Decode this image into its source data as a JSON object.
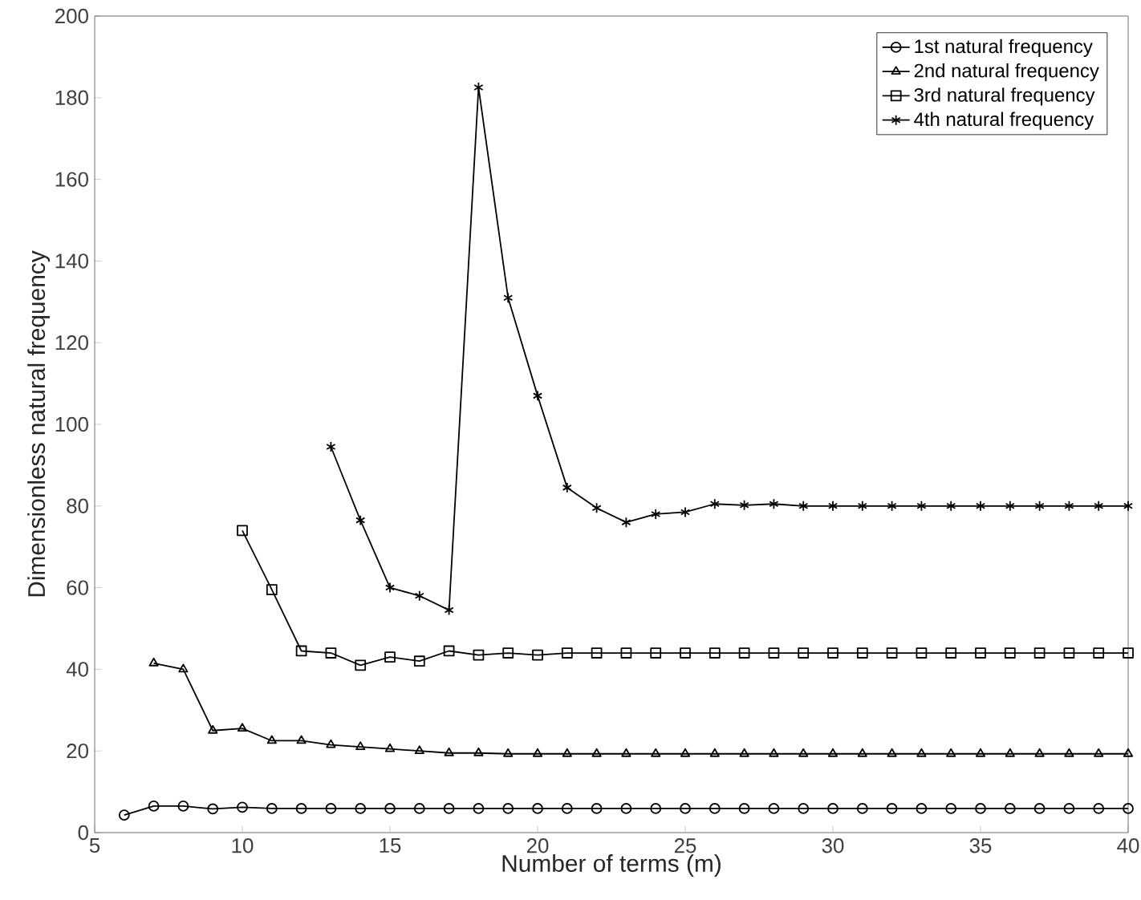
{
  "chart_data": {
    "type": "line",
    "xlabel": "Number of terms (m)",
    "ylabel": "Dimensionless natural frequency",
    "xlim": [
      5,
      40
    ],
    "ylim": [
      0,
      200
    ],
    "xticks": [
      5,
      10,
      15,
      20,
      25,
      30,
      35,
      40
    ],
    "yticks": [
      0,
      20,
      40,
      60,
      80,
      100,
      120,
      140,
      160,
      180,
      200
    ],
    "legend": "top right",
    "series": [
      {
        "name": "1st natural frequency",
        "color": "#000000",
        "marker": "circle",
        "x": [
          6,
          7,
          8,
          9,
          10,
          11,
          12,
          13,
          14,
          15,
          16,
          17,
          18,
          19,
          20,
          21,
          22,
          23,
          24,
          25,
          26,
          27,
          28,
          29,
          30,
          31,
          32,
          33,
          34,
          35,
          36,
          37,
          38,
          39,
          40
        ],
        "values": [
          4.3,
          6.5,
          6.5,
          5.8,
          6.2,
          5.9,
          5.9,
          5.9,
          5.9,
          5.9,
          5.9,
          5.9,
          5.9,
          5.9,
          5.9,
          5.9,
          5.9,
          5.9,
          5.9,
          5.9,
          5.9,
          5.9,
          5.9,
          5.9,
          5.9,
          5.9,
          5.9,
          5.9,
          5.9,
          5.9,
          5.9,
          5.9,
          5.9,
          5.9,
          5.9
        ]
      },
      {
        "name": "2nd natural frequency",
        "color": "#000000",
        "marker": "triangle",
        "x": [
          7,
          8,
          9,
          10,
          11,
          12,
          13,
          14,
          15,
          16,
          17,
          18,
          19,
          20,
          21,
          22,
          23,
          24,
          25,
          26,
          27,
          28,
          29,
          30,
          31,
          32,
          33,
          34,
          35,
          36,
          37,
          38,
          39,
          40
        ],
        "values": [
          41.5,
          40,
          25,
          25.5,
          22.5,
          22.5,
          21.5,
          21,
          20.5,
          20,
          19.5,
          19.5,
          19.3,
          19.3,
          19.3,
          19.3,
          19.3,
          19.3,
          19.3,
          19.3,
          19.3,
          19.3,
          19.3,
          19.3,
          19.3,
          19.3,
          19.3,
          19.3,
          19.3,
          19.3,
          19.3,
          19.3,
          19.3,
          19.3
        ]
      },
      {
        "name": "3rd natural frequency",
        "color": "#000000",
        "marker": "square",
        "x": [
          10,
          11,
          12,
          13,
          14,
          15,
          16,
          17,
          18,
          19,
          20,
          21,
          22,
          23,
          24,
          25,
          26,
          27,
          28,
          29,
          30,
          31,
          32,
          33,
          34,
          35,
          36,
          37,
          38,
          39,
          40
        ],
        "values": [
          74,
          59.5,
          44.5,
          44,
          41,
          43,
          42,
          44.5,
          43.5,
          44,
          43.5,
          44,
          44,
          44,
          44,
          44,
          44,
          44,
          44,
          44,
          44,
          44,
          44,
          44,
          44,
          44,
          44,
          44,
          44,
          44,
          44
        ]
      },
      {
        "name": "4th natural frequency",
        "color": "#000000",
        "marker": "cross",
        "x": [
          13,
          14,
          15,
          16,
          17,
          18,
          19,
          20,
          21,
          22,
          23,
          24,
          25,
          26,
          27,
          28,
          29,
          30,
          31,
          32,
          33,
          34,
          35,
          36,
          37,
          38,
          39,
          40
        ],
        "values": [
          94.5,
          76.5,
          60,
          58,
          54.5,
          182.5,
          131,
          107,
          84.5,
          79.5,
          76,
          78,
          78.5,
          80.5,
          80.2,
          80.5,
          80,
          80,
          80,
          80,
          80,
          80,
          80,
          80,
          80,
          80,
          80,
          80
        ]
      }
    ]
  }
}
